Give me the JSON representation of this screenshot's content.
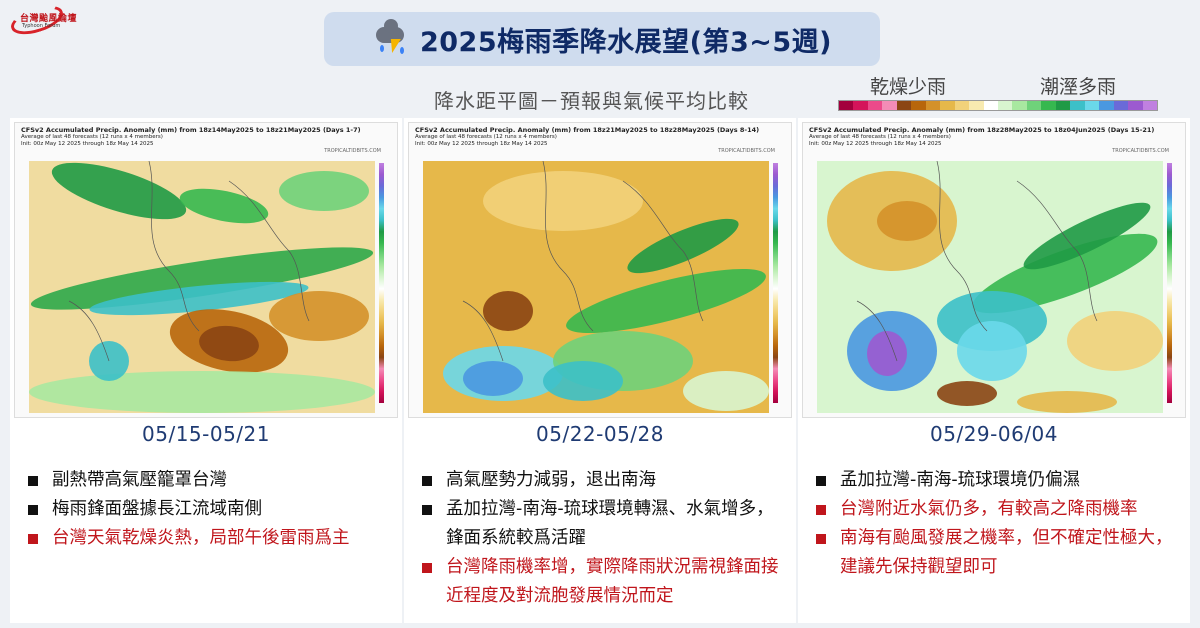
{
  "logo": {
    "name": "台灣颱風論壇",
    "sub": "Typhoon Forum"
  },
  "title": "2025梅雨季降水展望(第3~5週)",
  "subtitle": "降水距平圖－預報與氣候平均比較",
  "legend": {
    "dry_label": "乾燥少雨",
    "wet_label": "潮溼多雨",
    "colors": [
      "#a3003d",
      "#d4145a",
      "#ec4a8a",
      "#f48cb6",
      "#8b4513",
      "#b8660b",
      "#d4912a",
      "#e6b84a",
      "#f2d27a",
      "#f8eab0",
      "#ffffff",
      "#d8f5cf",
      "#a8e8a0",
      "#6fd27a",
      "#36b84f",
      "#1f9a45",
      "#3cc0c8",
      "#6ad8ea",
      "#4a98e0",
      "#6a6ad8",
      "#9c5ad0",
      "#c080e0"
    ]
  },
  "panels": [
    {
      "map_title": "CFSv2 Accumulated Precip. Anomaly (mm) from 18z14May2025 to 18z21May2025 (Days 1-7)",
      "map_sub1": "Average of last 48 forecasts (12 runs x 4 members)",
      "map_sub2": "Init: 00z May 12 2025 through 18z May 14 2025",
      "brand": "TROPICALTIDBITS.COM",
      "date": "05/15-05/21",
      "bullets": [
        {
          "text": "副熱帶高氣壓籠罩台灣",
          "red": false
        },
        {
          "text": "梅雨鋒面盤據長江流域南側",
          "red": false
        },
        {
          "text": "台灣天氣乾燥炎熱，局部午後雷雨爲主",
          "red": true
        }
      ]
    },
    {
      "map_title": "CFSv2 Accumulated Precip. Anomaly (mm) from 18z21May2025 to 18z28May2025 (Days 8-14)",
      "map_sub1": "Average of last 48 forecasts (12 runs x 4 members)",
      "map_sub2": "Init: 00z May 12 2025 through 18z May 14 2025",
      "brand": "TROPICALTIDBITS.COM",
      "date": "05/22-05/28",
      "bullets": [
        {
          "text": "高氣壓勢力減弱，退出南海",
          "red": false
        },
        {
          "text": "孟加拉灣-南海-琉球環境轉濕、水氣增多，鋒面系統較爲活躍",
          "red": false
        },
        {
          "text": "台灣降雨機率增，實際降雨狀況需視鋒面接近程度及對流胞發展情況而定",
          "red": true
        }
      ]
    },
    {
      "map_title": "CFSv2 Accumulated Precip. Anomaly (mm) from 18z28May2025 to 18z04Jun2025 (Days 15-21)",
      "map_sub1": "Average of last 48 forecasts (12 runs x 4 members)",
      "map_sub2": "Init: 00z May 12 2025 through 18z May 14 2025",
      "brand": "TROPICALTIDBITS.COM",
      "date": "05/29-06/04",
      "bullets": [
        {
          "text": "孟加拉灣-南海-琉球環境仍偏濕",
          "red": false
        },
        {
          "text": "台灣附近水氣仍多，有較高之降雨機率",
          "red": true
        },
        {
          "text": "南海有颱風發展之機率，但不確定性極大，建議先保持觀望即可",
          "red": true
        }
      ]
    }
  ]
}
